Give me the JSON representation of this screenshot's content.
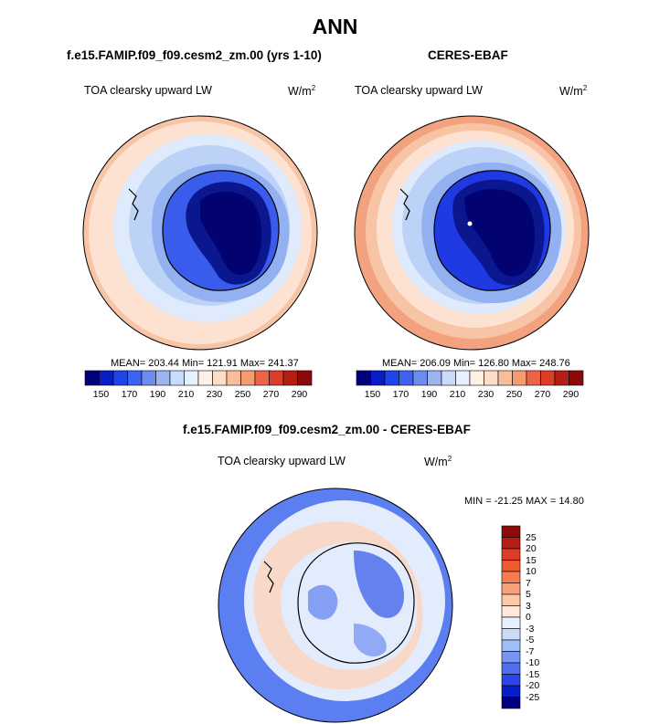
{
  "figure": {
    "season_title": "ANN"
  },
  "panels": [
    {
      "title": "f.e15.FAMIP.f09_f09.cesm2_zm.00 (yrs 1-10)",
      "variable": "TOA clearsky upward LW",
      "units": "W/m",
      "units_sup": "2",
      "stats_text": "MEAN= 203.44  Min= 121.91  Max= 241.37",
      "stats": {
        "mean": 203.44,
        "min": 121.91,
        "max": 241.37
      }
    },
    {
      "title": "CERES-EBAF",
      "variable": "TOA clearsky upward LW",
      "units": "W/m",
      "units_sup": "2",
      "stats_text": "MEAN= 206.09  Min= 126.80  Max= 248.76",
      "stats": {
        "mean": 206.09,
        "min": 126.8,
        "max": 248.76
      }
    },
    {
      "title": "f.e15.FAMIP.f09_f09.cesm2_zm.00 - CERES-EBAF",
      "variable": "TOA clearsky upward LW",
      "units": "W/m",
      "units_sup": "2",
      "stats_text": "MIN = -21.25 MAX =  14.80",
      "stats": {
        "min": -21.25,
        "max": 14.8
      }
    }
  ],
  "colorbar_abs": {
    "ticks": [
      "150",
      "170",
      "190",
      "210",
      "230",
      "250",
      "270",
      "290"
    ],
    "colors": [
      "#00007f",
      "#0a1ec8",
      "#1e46e6",
      "#3c64f0",
      "#6e8cf0",
      "#9bb4f0",
      "#c8dcfa",
      "#e6f0ff",
      "#fff0e6",
      "#fddcc8",
      "#f8be9b",
      "#f59a73",
      "#ec6446",
      "#dc3c28",
      "#b41e14",
      "#8c0a0a"
    ]
  },
  "colorbar_diff": {
    "ticks": [
      "25",
      "20",
      "15",
      "10",
      "7",
      "5",
      "3",
      "0",
      "-3",
      "-5",
      "-7",
      "-10",
      "-15",
      "-20",
      "-25"
    ],
    "colors": [
      "#8c0a0a",
      "#b41e14",
      "#dc3c28",
      "#ec5a32",
      "#f57d50",
      "#f8a078",
      "#fcc8a8",
      "#ffe8d8",
      "#e6f0ff",
      "#c8dcfa",
      "#a0bef5",
      "#7896f0",
      "#4f6ef0",
      "#2a46e6",
      "#0a1ec8",
      "#00007f"
    ]
  },
  "map_colors": {
    "ocean_warm": "#fde2d2",
    "ocean_warm2": "#f8c4a6",
    "ocean_warm3": "#f2a27e",
    "band_cold1": "#dfeafc",
    "band_cold2": "#bcd2f7",
    "band_cold3": "#93b0f0",
    "land1": "#6a87ef",
    "land2": "#3a5cec",
    "land3": "#1f3ae2",
    "land_core": "#0a178f",
    "land_deep": "#020270",
    "diff_base": "#e3ecfd",
    "diff_blue": "#5b7ff0",
    "diff_blue2": "#3a5ee8",
    "diff_red": "#fbd6c0"
  }
}
